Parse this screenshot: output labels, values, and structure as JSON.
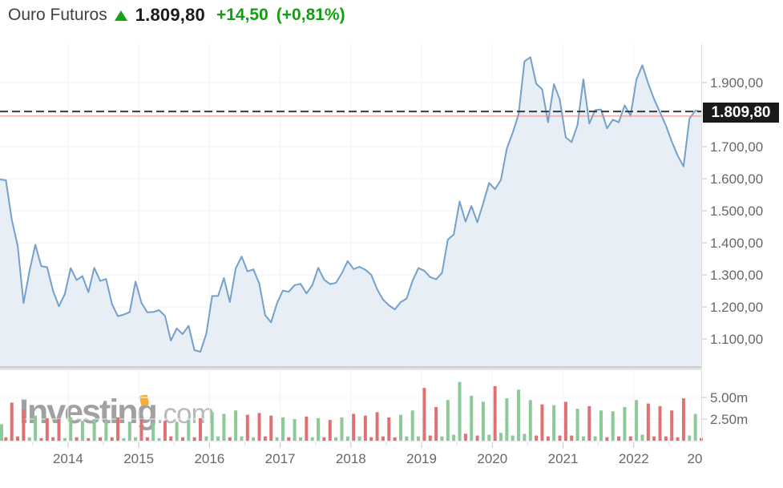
{
  "header": {
    "title": "Ouro Futuros",
    "arrow_icon": "up-triangle-green",
    "price": "1.809,80",
    "change": "+14,50",
    "change_pct": "(+0,81%)"
  },
  "watermark": {
    "text_main": "Investing",
    "text_suffix": ".com",
    "flag_color": "#F7A823"
  },
  "chart_data": {
    "type": "area",
    "title": "Ouro Futuros (Gold Futures) monthly price with volume",
    "start_month": "2013-02",
    "end_month": "2023-01",
    "prices": [
      1598,
      1595,
      1472,
      1390,
      1212,
      1312,
      1394,
      1327,
      1324,
      1250,
      1202,
      1240,
      1321,
      1284,
      1296,
      1246,
      1322,
      1281,
      1287,
      1209,
      1171,
      1176,
      1184,
      1279,
      1213,
      1183,
      1184,
      1190,
      1172,
      1095,
      1133,
      1115,
      1141,
      1065,
      1060,
      1116,
      1234,
      1234,
      1290,
      1215,
      1320,
      1357,
      1311,
      1317,
      1273,
      1174,
      1152,
      1211,
      1251,
      1247,
      1268,
      1272,
      1242,
      1268,
      1322,
      1285,
      1271,
      1275,
      1305,
      1343,
      1318,
      1325,
      1316,
      1300,
      1255,
      1223,
      1205,
      1192,
      1215,
      1226,
      1281,
      1321,
      1313,
      1293,
      1286,
      1306,
      1410,
      1426,
      1529,
      1466,
      1515,
      1464,
      1523,
      1587,
      1567,
      1596,
      1694,
      1743,
      1801,
      1966,
      1979,
      1896,
      1879,
      1776,
      1895,
      1847,
      1729,
      1714,
      1768,
      1910,
      1772,
      1814,
      1816,
      1757,
      1784,
      1776,
      1829,
      1797,
      1909,
      1954,
      1897,
      1848,
      1807,
      1766,
      1716,
      1672,
      1638,
      1788,
      1812,
      1809.8
    ],
    "volumes_millions": [
      1.9,
      0.4,
      4.4,
      0.5,
      3.6,
      0.4,
      2.9,
      0.3,
      2.6,
      0.4,
      2.5,
      0.3,
      2.7,
      0.4,
      2.3,
      0.3,
      2.5,
      0.4,
      2.3,
      0.4,
      2.7,
      0.3,
      2.2,
      0.4,
      2.5,
      0.4,
      2.1,
      0.3,
      2.3,
      0.5,
      2.2,
      0.4,
      2.4,
      0.4,
      2.6,
      0.5,
      3.3,
      0.5,
      3.1,
      0.4,
      3.5,
      0.5,
      3.0,
      0.4,
      3.2,
      0.5,
      2.9,
      0.4,
      2.7,
      0.4,
      2.5,
      0.4,
      2.8,
      0.4,
      2.6,
      0.4,
      2.4,
      0.4,
      2.7,
      0.5,
      3.1,
      0.5,
      2.9,
      0.4,
      3.3,
      0.5,
      2.7,
      0.4,
      3.0,
      0.5,
      3.5,
      0.5,
      6.1,
      0.6,
      3.9,
      0.5,
      4.7,
      0.7,
      6.8,
      0.8,
      5.2,
      0.6,
      4.5,
      0.7,
      6.3,
      0.9,
      4.9,
      0.6,
      5.9,
      0.8,
      4.7,
      0.6,
      4.2,
      0.5,
      4.1,
      0.6,
      4.5,
      0.6,
      3.7,
      0.5,
      4.0,
      0.5,
      3.5,
      0.4,
      3.4,
      0.5,
      3.9,
      0.5,
      4.7,
      0.7,
      4.3,
      0.5,
      4.0,
      0.5,
      3.5,
      0.4,
      4.9,
      0.6,
      3.1,
      0.3
    ],
    "current": {
      "value": 1809.8,
      "label": "1.809,80"
    },
    "previous_close": {
      "value": 1795.3
    },
    "y_ticks": [
      {
        "value": 1900,
        "label": "1.900,00"
      },
      {
        "value": 1700,
        "label": "1.700,00"
      },
      {
        "value": 1600,
        "label": "1.600,00"
      },
      {
        "value": 1500,
        "label": "1.500,00"
      },
      {
        "value": 1400,
        "label": "1.400,00"
      },
      {
        "value": 1300,
        "label": "1.300,00"
      },
      {
        "value": 1200,
        "label": "1.200,00"
      },
      {
        "value": 1100,
        "label": "1.100,00"
      }
    ],
    "volume_ticks": [
      {
        "value": 5,
        "label": "5.00m"
      },
      {
        "value": 2.5,
        "label": "2.50m"
      }
    ],
    "x_labels": [
      "2014",
      "2015",
      "2016",
      "2017",
      "2018",
      "2019",
      "2020",
      "2021",
      "2022",
      "20"
    ],
    "ylim": [
      1015,
      2060
    ],
    "grid": true,
    "colors": {
      "line": "#74A0CB",
      "fill": "#E7EEF6",
      "volume_up": "#8CC999",
      "volume_down": "#DF7173",
      "current_dashed": "#3a3a3a",
      "previous_close_line": "#EA8585",
      "badge_bg": "#1a1a1a",
      "badge_text": "#ffffff",
      "axis_text": "#64686d",
      "grid_line": "#f0f1f5"
    }
  }
}
